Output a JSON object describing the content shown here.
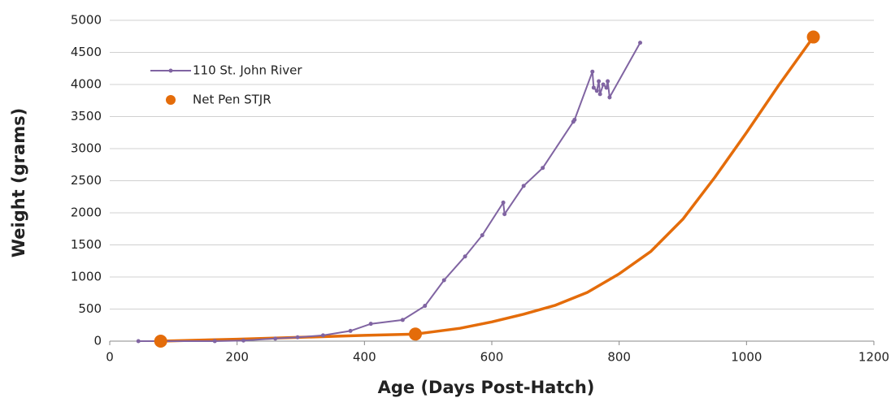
{
  "chart_data": {
    "type": "line",
    "xlabel": "Age (Days Post-Hatch)",
    "ylabel": "Weight (grams)",
    "xlim": [
      0,
      1200
    ],
    "xticks": [
      0,
      200,
      400,
      600,
      800,
      1000,
      1200
    ],
    "ylim": [
      0,
      5000
    ],
    "yticks": [
      0,
      500,
      1000,
      1500,
      2000,
      2500,
      3000,
      3500,
      4000,
      4500,
      5000
    ],
    "grid": true,
    "legend": "upper left",
    "series": [
      {
        "name": "110 St. John River",
        "color": "#8064a2",
        "style": "line",
        "x": [
          45,
          165,
          210,
          260,
          295,
          335,
          378,
          410,
          460,
          495,
          525,
          558,
          585,
          618,
          620,
          650,
          680,
          728,
          730,
          758,
          760,
          765,
          768,
          770,
          775,
          780,
          782,
          785,
          833
        ],
        "values": [
          0,
          0,
          10,
          40,
          60,
          90,
          160,
          270,
          330,
          550,
          950,
          1320,
          1650,
          2160,
          1980,
          2420,
          2700,
          3420,
          3450,
          4200,
          3950,
          3900,
          4050,
          3850,
          4000,
          3950,
          4050,
          3800,
          4650
        ]
      },
      {
        "name": "Net Pen STJR",
        "color": "#e46c0a",
        "style": "dot",
        "x": [
          80,
          480,
          1105
        ],
        "values": [
          0,
          110,
          4740
        ]
      }
    ],
    "trendline": {
      "color": "#e46c0a",
      "x": [
        80,
        200,
        300,
        400,
        480,
        550,
        600,
        650,
        700,
        750,
        800,
        850,
        900,
        950,
        1000,
        1050,
        1105
      ],
      "values": [
        0,
        30,
        60,
        90,
        110,
        200,
        300,
        420,
        560,
        760,
        1050,
        1400,
        1900,
        2550,
        3250,
        3980,
        4740
      ]
    }
  }
}
